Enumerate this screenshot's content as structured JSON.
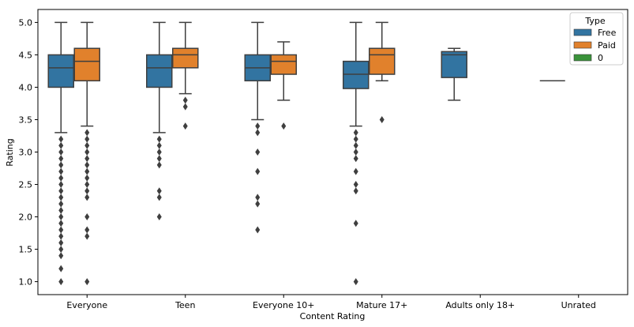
{
  "chart_data": {
    "type": "boxplot",
    "xlabel": "Content Rating",
    "ylabel": "Rating",
    "categories": [
      "Everyone",
      "Teen",
      "Everyone 10+",
      "Mature 17+",
      "Adults only 18+",
      "Unrated"
    ],
    "ylim": [
      0.8,
      5.2
    ],
    "yticks": [
      "1.0",
      "1.5",
      "2.0",
      "2.5",
      "3.0",
      "3.5",
      "4.0",
      "4.5",
      "5.0"
    ],
    "hue_levels": [
      "Free",
      "Paid",
      "0"
    ],
    "legend": {
      "title": "Type",
      "position": "top-right",
      "entries": [
        {
          "label": "Free",
          "color": "#3274a1"
        },
        {
          "label": "Paid",
          "color": "#e1812c"
        },
        {
          "label": "0",
          "color": "#3a923a"
        }
      ]
    },
    "series": [
      {
        "name": "Free",
        "color": "#3274a1",
        "boxes": [
          {
            "category": "Everyone",
            "whislo": 3.3,
            "q1": 4.0,
            "med": 4.3,
            "q3": 4.5,
            "whishi": 5.0,
            "fliers": [
              3.2,
              3.1,
              3.0,
              2.9,
              2.8,
              2.7,
              2.6,
              2.5,
              2.4,
              2.3,
              2.2,
              2.1,
              2.0,
              1.9,
              1.8,
              1.7,
              1.6,
              1.5,
              1.4,
              1.2,
              1.0
            ]
          },
          {
            "category": "Teen",
            "whislo": 3.3,
            "q1": 4.0,
            "med": 4.3,
            "q3": 4.5,
            "whishi": 5.0,
            "fliers": [
              3.2,
              3.1,
              3.0,
              2.9,
              2.8,
              2.4,
              2.3,
              2.0
            ]
          },
          {
            "category": "Everyone 10+",
            "whislo": 3.5,
            "q1": 4.1,
            "med": 4.3,
            "q3": 4.5,
            "whishi": 5.0,
            "fliers": [
              3.4,
              3.3,
              3.0,
              2.7,
              2.3,
              2.2,
              1.8
            ]
          },
          {
            "category": "Mature 17+",
            "whislo": 3.4,
            "q1": 3.98,
            "med": 4.2,
            "q3": 4.4,
            "whishi": 5.0,
            "fliers": [
              3.3,
              3.2,
              3.1,
              3.0,
              2.9,
              2.7,
              2.5,
              2.4,
              1.9,
              1.0
            ]
          },
          {
            "category": "Adults only 18+",
            "whislo": 3.8,
            "q1": 4.15,
            "med": 4.5,
            "q3": 4.55,
            "whishi": 4.6,
            "fliers": []
          },
          {
            "category": "Unrated",
            "whislo": 4.1,
            "q1": 4.1,
            "med": 4.1,
            "q3": 4.1,
            "whishi": 4.1,
            "fliers": []
          }
        ]
      },
      {
        "name": "Paid",
        "color": "#e1812c",
        "boxes": [
          {
            "category": "Everyone",
            "whislo": 3.4,
            "q1": 4.1,
            "med": 4.4,
            "q3": 4.6,
            "whishi": 5.0,
            "fliers": [
              3.3,
              3.2,
              3.1,
              3.0,
              2.9,
              2.8,
              2.7,
              2.6,
              2.5,
              2.4,
              2.3,
              2.0,
              1.8,
              1.7,
              1.0
            ]
          },
          {
            "category": "Teen",
            "whislo": 3.9,
            "q1": 4.3,
            "med": 4.5,
            "q3": 4.6,
            "whishi": 5.0,
            "fliers": [
              3.8,
              3.7,
              3.4
            ]
          },
          {
            "category": "Everyone 10+",
            "whislo": 3.8,
            "q1": 4.2,
            "med": 4.4,
            "q3": 4.5,
            "whishi": 4.7,
            "fliers": [
              3.4
            ]
          },
          {
            "category": "Mature 17+",
            "whislo": 4.1,
            "q1": 4.2,
            "med": 4.5,
            "q3": 4.6,
            "whishi": 5.0,
            "fliers": [
              3.5
            ]
          }
        ]
      }
    ]
  }
}
